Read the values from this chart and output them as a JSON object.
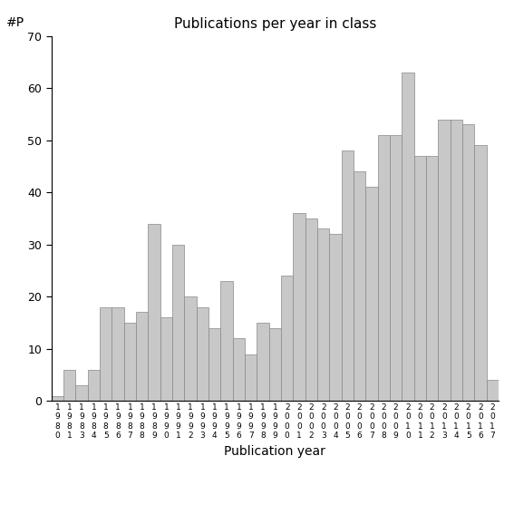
{
  "title": "Publications per year in class",
  "xlabel": "Publication year",
  "ylabel": "#P",
  "bar_color": "#c8c8c8",
  "bar_edge_color": "#888888",
  "background_color": "#ffffff",
  "ylim": [
    0,
    70
  ],
  "yticks": [
    0,
    10,
    20,
    30,
    40,
    50,
    60,
    70
  ],
  "categories": [
    "1980",
    "1981",
    "1983",
    "1984",
    "1985",
    "1986",
    "1987",
    "1988",
    "1989",
    "1990",
    "1991",
    "1992",
    "1993",
    "1994",
    "1995",
    "1996",
    "1997",
    "1998",
    "1999",
    "2000",
    "2001",
    "2002",
    "2003",
    "2004",
    "2005",
    "2006",
    "2007",
    "2008",
    "2009",
    "2010",
    "2011",
    "2012",
    "2013",
    "2014",
    "2015",
    "2016",
    "2017"
  ],
  "values": [
    1,
    6,
    3,
    6,
    18,
    18,
    15,
    17,
    34,
    16,
    30,
    20,
    18,
    14,
    23,
    12,
    9,
    15,
    14,
    24,
    36,
    35,
    33,
    32,
    48,
    44,
    41,
    51,
    51,
    63,
    47,
    47,
    54,
    54,
    53,
    49,
    4
  ]
}
